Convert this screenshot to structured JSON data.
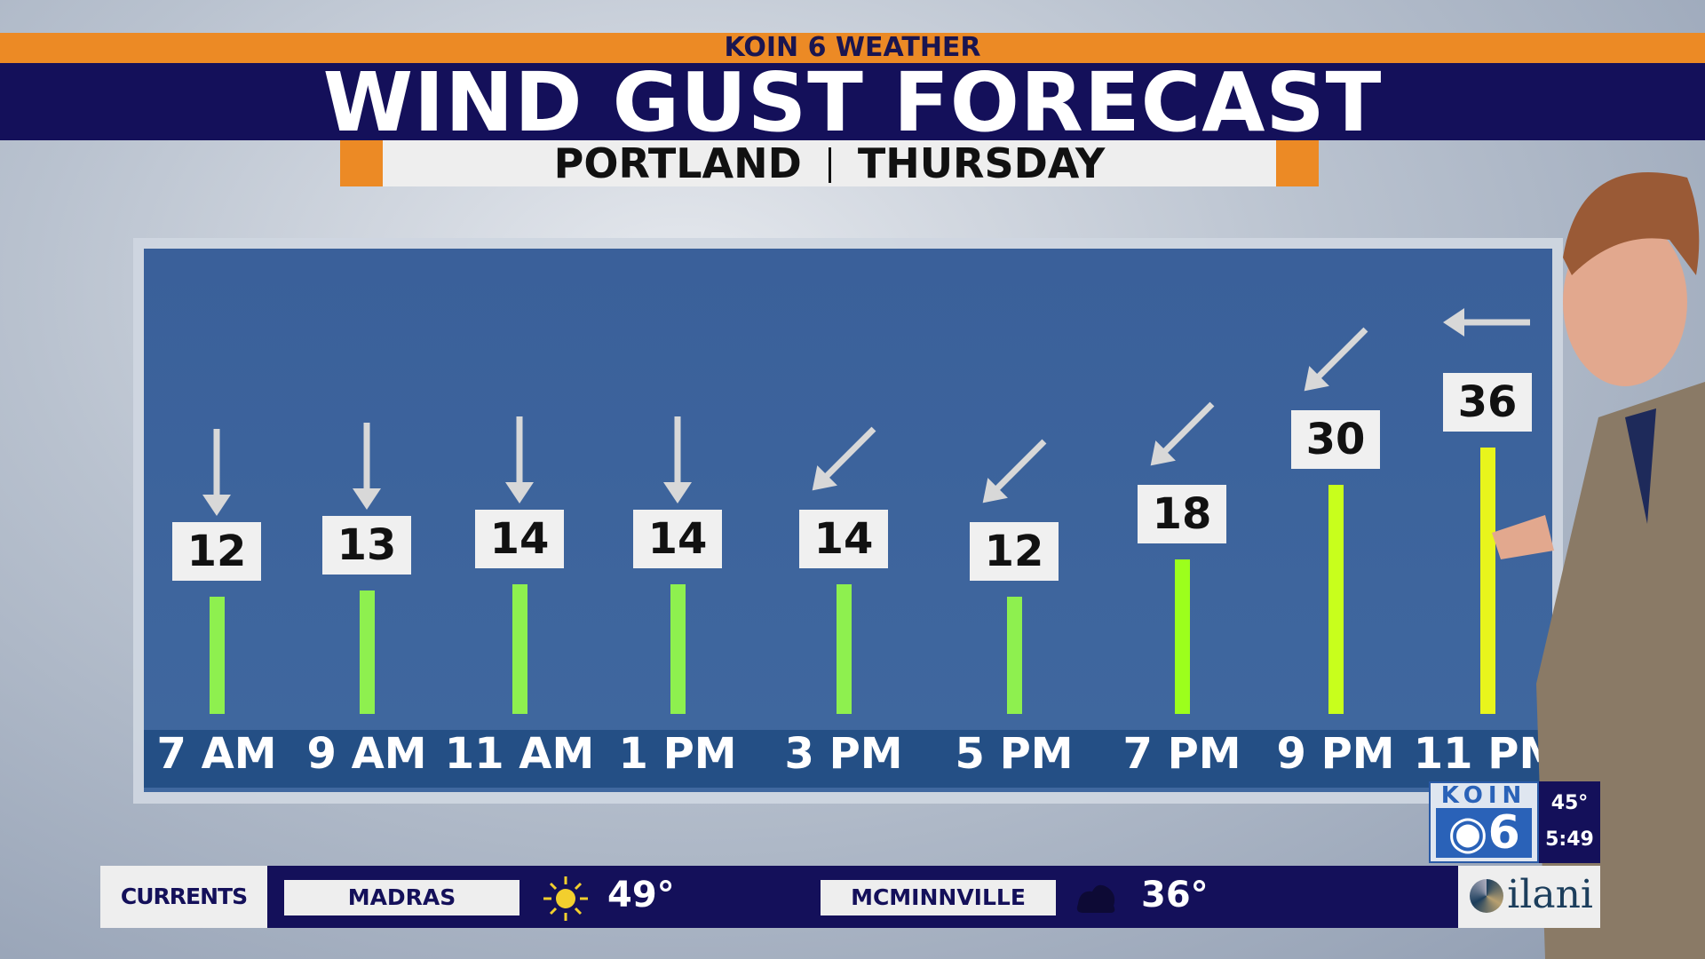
{
  "header": {
    "network": "KOIN 6 WEATHER",
    "title": "WIND GUST FORECAST",
    "location": "PORTLAND",
    "day": "THURSDAY"
  },
  "chart_data": {
    "type": "bar",
    "title": "WIND GUST FORECAST",
    "categories": [
      "7 AM",
      "9 AM",
      "11 AM",
      "1 PM",
      "3 PM",
      "5 PM",
      "7 PM",
      "9 PM",
      "11 PM"
    ],
    "values": [
      12,
      13,
      14,
      14,
      14,
      12,
      18,
      30,
      36
    ],
    "wind_arrow_direction": [
      "south",
      "south",
      "south",
      "south",
      "southwest",
      "southwest",
      "southwest",
      "southwest",
      "west"
    ],
    "bar_colors": [
      "#8ef04f",
      "#8ef04f",
      "#8ef04f",
      "#8ef04f",
      "#8ef04f",
      "#8ef04f",
      "#9cff1c",
      "#c8ff1c",
      "#e8f51c"
    ]
  },
  "bug": {
    "logo": "KOIN 6",
    "temp": "45°",
    "time": "5:49"
  },
  "ticker": {
    "label": "CURRENTS",
    "cities": [
      {
        "name": "MADRAS",
        "icon": "sun-icon",
        "temp": "49°"
      },
      {
        "name": "MCMINNVILLE",
        "icon": "cloud-night-icon",
        "temp": "36°"
      }
    ],
    "sponsor": "ilani"
  }
}
